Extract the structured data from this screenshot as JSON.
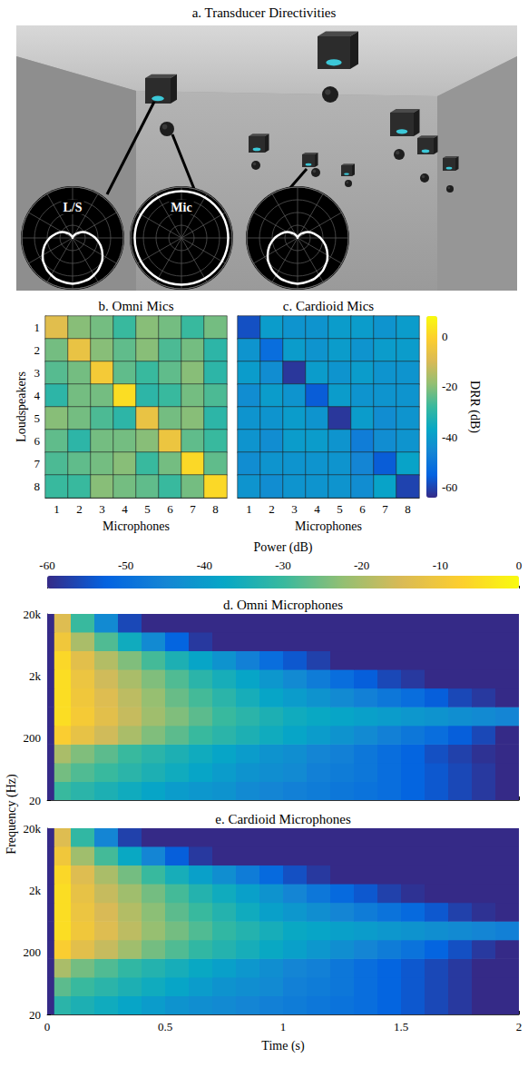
{
  "chart_data": [
    {
      "type": "polar",
      "title": "a. Transducer Directivities",
      "thetalim": [
        0,
        360
      ],
      "thetaticks": [
        0,
        30,
        60,
        90,
        120,
        150,
        180,
        210,
        240,
        270,
        300,
        330
      ],
      "rlim": [
        0,
        1
      ],
      "rticks": [
        0,
        0.25,
        0.5,
        0.75,
        1
      ],
      "tick_labels": false,
      "grid": true,
      "angles": [
        0,
        15,
        30,
        45,
        60,
        75,
        90,
        105,
        120,
        135,
        150,
        165,
        180,
        195,
        210,
        225,
        240,
        255,
        270,
        285,
        300,
        315,
        330,
        345
      ],
      "series": [
        {
          "name": "L/S",
          "color": "#ffffff",
          "values": [
            0.9,
            0.88,
            0.84,
            0.77,
            0.68,
            0.57,
            0.45,
            0.33,
            0.23,
            0.13,
            0.06,
            0.02,
            0,
            0.02,
            0.06,
            0.13,
            0.23,
            0.33,
            0.45,
            0.57,
            0.68,
            0.77,
            0.84,
            0.88
          ]
        },
        {
          "name": "Mic",
          "color": "#ffffff",
          "values": [
            0.92,
            0.92,
            0.92,
            0.92,
            0.92,
            0.92,
            0.92,
            0.92,
            0.92,
            0.92,
            0.92,
            0.92,
            0.92,
            0.92,
            0.92,
            0.92,
            0.92,
            0.92,
            0.92,
            0.92,
            0.92,
            0.92,
            0.92,
            0.92
          ]
        },
        {
          "color": "#ffffff",
          "values": [
            0.9,
            0.88,
            0.84,
            0.77,
            0.68,
            0.57,
            0.45,
            0.33,
            0.23,
            0.13,
            0.06,
            0.02,
            0,
            0.02,
            0.06,
            0.13,
            0.23,
            0.33,
            0.45,
            0.57,
            0.68,
            0.77,
            0.84,
            0.88
          ]
        }
      ]
    },
    {
      "type": "heatmap",
      "title": "b. Omni Mics",
      "x_label": "Microphones",
      "y_label": "Loudspeakers",
      "x": [
        1,
        2,
        3,
        4,
        5,
        6,
        7,
        8
      ],
      "y": [
        1,
        2,
        3,
        4,
        5,
        6,
        7,
        8
      ],
      "cells": [
        [
          -8,
          -20,
          -22,
          -28,
          -20,
          -22,
          -28,
          -22
        ],
        [
          -22,
          -6,
          -20,
          -24,
          -20,
          -26,
          -22,
          -30
        ],
        [
          -25,
          -22,
          -3,
          -24,
          -28,
          -24,
          -20,
          -30
        ],
        [
          -30,
          -22,
          -22,
          2,
          -30,
          -28,
          -22,
          -26
        ],
        [
          -20,
          -22,
          -26,
          -30,
          -6,
          -22,
          -20,
          -30
        ],
        [
          -24,
          -30,
          -22,
          -22,
          -20,
          -5,
          -24,
          -28
        ],
        [
          -26,
          -24,
          -22,
          -20,
          -28,
          -22,
          1,
          -24
        ],
        [
          -28,
          -28,
          -20,
          -22,
          -24,
          -28,
          -22,
          1
        ]
      ]
    },
    {
      "type": "heatmap",
      "title": "c. Cardioid Mics",
      "x_label": "Microphones",
      "tick_labels": "x",
      "x": [
        1,
        2,
        3,
        4,
        5,
        6,
        7,
        8
      ],
      "y": [
        1,
        2,
        3,
        4,
        5,
        6,
        7,
        8
      ],
      "cells": [
        [
          -58,
          -40,
          -42,
          -42,
          -40,
          -40,
          -42,
          -40
        ],
        [
          -42,
          -52,
          -40,
          -42,
          -40,
          -42,
          -40,
          -40
        ],
        [
          -40,
          -44,
          -62,
          -40,
          -42,
          -40,
          -42,
          -42
        ],
        [
          -44,
          -40,
          -42,
          -56,
          -40,
          -42,
          -42,
          -42
        ],
        [
          -42,
          -42,
          -40,
          -42,
          -62,
          -40,
          -44,
          -42
        ],
        [
          -42,
          -44,
          -40,
          -40,
          -42,
          -48,
          -44,
          -42
        ],
        [
          -44,
          -42,
          -42,
          -42,
          -42,
          -46,
          -56,
          -38
        ],
        [
          -42,
          -44,
          -42,
          -42,
          -42,
          -44,
          -38,
          -60
        ]
      ],
      "colorbar": {
        "label": "DRR (dB)",
        "range": [
          -64,
          8
        ],
        "ticks": [
          0,
          -20,
          -40,
          -60
        ]
      }
    },
    {
      "type": "spectrogram",
      "title": "d. Omni Microphones",
      "log": "y",
      "tick_labels": "y",
      "xlim": [
        0,
        2
      ],
      "xticks": [
        0,
        0.5,
        1,
        1.5,
        2
      ],
      "ylim": [
        20,
        20000
      ],
      "yticks": [
        20,
        200,
        {
          "value": 2000,
          "label": "2k"
        },
        {
          "value": 20000,
          "label": "20k"
        }
      ],
      "time_bins": [
        0,
        0.03,
        0.1,
        0.2,
        0.3,
        0.4,
        0.5,
        0.6,
        0.7,
        0.8,
        0.9,
        1,
        1.1,
        1.2,
        1.3,
        1.4,
        1.5,
        1.6,
        1.7,
        1.8,
        1.9,
        2
      ],
      "freq_bins": [
        20,
        40,
        80,
        160,
        320,
        640,
        1280,
        2560,
        5120,
        10240,
        20000
      ],
      "cells": [
        [
          -60,
          -30,
          -32,
          -34,
          -36,
          -38,
          -40,
          -41,
          -42,
          -44,
          -45,
          -46,
          -47,
          -48,
          -49,
          -50,
          -52,
          -54,
          -56,
          -58,
          -60
        ],
        [
          -60,
          -25,
          -28,
          -30,
          -32,
          -34,
          -36,
          -38,
          -40,
          -42,
          -43,
          -44,
          -46,
          -47,
          -48,
          -50,
          -52,
          -54,
          -56,
          -58,
          -60
        ],
        [
          -60,
          -20,
          -24,
          -27,
          -30,
          -32,
          -34,
          -36,
          -38,
          -40,
          -42,
          -43,
          -45,
          -46,
          -48,
          -50,
          -52,
          -55,
          -57,
          -59,
          -60
        ],
        [
          -60,
          -8,
          -12,
          -16,
          -20,
          -24,
          -27,
          -30,
          -32,
          -34,
          -36,
          -38,
          -40,
          -42,
          -44,
          -46,
          -48,
          -50,
          -53,
          -56,
          -60
        ],
        [
          -60,
          -5,
          -9,
          -13,
          -17,
          -21,
          -24,
          -27,
          -30,
          -32,
          -34,
          -36,
          -37,
          -38,
          -39,
          -40,
          -41,
          -42,
          -43,
          -44,
          -45
        ],
        [
          -60,
          -5,
          -10,
          -14,
          -18,
          -22,
          -26,
          -29,
          -32,
          -35,
          -38,
          -40,
          -42,
          -44,
          -46,
          -48,
          -50,
          -53,
          -56,
          -58,
          -60
        ],
        [
          -60,
          -5,
          -11,
          -16,
          -20,
          -24,
          -28,
          -32,
          -35,
          -38,
          -41,
          -44,
          -47,
          -50,
          -53,
          -56,
          -58,
          -60,
          -60,
          -60,
          -60
        ],
        [
          -60,
          -6,
          -13,
          -19,
          -24,
          -29,
          -34,
          -38,
          -42,
          -46,
          -50,
          -54,
          -57,
          -60,
          -60,
          -60,
          -60,
          -60,
          -60,
          -60,
          -60
        ],
        [
          -60,
          -10,
          -20,
          -28,
          -36,
          -44,
          -52,
          -58,
          -60,
          -60,
          -60,
          -60,
          -60,
          -60,
          -60,
          -60,
          -60,
          -60,
          -60,
          -60,
          -60
        ],
        [
          -60,
          -14,
          -30,
          -44,
          -56,
          -60,
          -60,
          -60,
          -60,
          -60,
          -60,
          -60,
          -60,
          -60,
          -60,
          -60,
          -60,
          -60,
          -60,
          -60,
          -60
        ]
      ],
      "colorbar": {
        "label": "Power (dB)",
        "range": [
          -60,
          0
        ],
        "ticks": [
          -60,
          -50,
          -40,
          -30,
          -20,
          -10,
          0
        ]
      }
    },
    {
      "type": "spectrogram",
      "title": "e. Cardioid Microphones",
      "x_label": "Time (s)",
      "y_label": "Frequency (Hz)",
      "log": "y",
      "xlim": [
        0,
        2
      ],
      "xticks": [
        0,
        0.5,
        1,
        1.5,
        2
      ],
      "ylim": [
        20,
        20000
      ],
      "yticks": [
        20,
        200,
        {
          "value": 2000,
          "label": "2k"
        },
        {
          "value": 20000,
          "label": "20k"
        }
      ],
      "time_bins": [
        0,
        0.03,
        0.1,
        0.2,
        0.3,
        0.4,
        0.5,
        0.6,
        0.7,
        0.8,
        0.9,
        1,
        1.1,
        1.2,
        1.3,
        1.4,
        1.5,
        1.6,
        1.7,
        1.8,
        1.9,
        2
      ],
      "freq_bins": [
        20,
        40,
        80,
        160,
        320,
        640,
        1280,
        2560,
        5120,
        10240,
        20000
      ],
      "cells": [
        [
          -60,
          -32,
          -34,
          -36,
          -38,
          -40,
          -42,
          -43,
          -44,
          -45,
          -46,
          -47,
          -48,
          -49,
          -50,
          -52,
          -54,
          -56,
          -58,
          -60,
          -60
        ],
        [
          -60,
          -27,
          -30,
          -32,
          -34,
          -36,
          -38,
          -40,
          -42,
          -43,
          -44,
          -46,
          -47,
          -48,
          -50,
          -52,
          -54,
          -56,
          -58,
          -60,
          -60
        ],
        [
          -60,
          -20,
          -25,
          -28,
          -31,
          -33,
          -35,
          -37,
          -39,
          -41,
          -43,
          -45,
          -46,
          -48,
          -50,
          -52,
          -54,
          -56,
          -58,
          -60,
          -60
        ],
        [
          -60,
          -8,
          -13,
          -17,
          -21,
          -25,
          -28,
          -31,
          -33,
          -35,
          -37,
          -39,
          -41,
          -43,
          -45,
          -47,
          -49,
          -52,
          -55,
          -58,
          -60
        ],
        [
          -60,
          -5,
          -10,
          -14,
          -18,
          -22,
          -25,
          -28,
          -31,
          -33,
          -35,
          -37,
          -38,
          -39,
          -40,
          -41,
          -42,
          -43,
          -44,
          -45,
          -46
        ],
        [
          -60,
          -5,
          -11,
          -15,
          -19,
          -23,
          -27,
          -30,
          -33,
          -36,
          -39,
          -41,
          -43,
          -45,
          -47,
          -49,
          -51,
          -54,
          -57,
          -59,
          -60
        ],
        [
          -60,
          -5,
          -12,
          -17,
          -21,
          -25,
          -29,
          -33,
          -36,
          -39,
          -42,
          -45,
          -48,
          -51,
          -54,
          -57,
          -59,
          -60,
          -60,
          -60,
          -60
        ],
        [
          -60,
          -6,
          -14,
          -20,
          -25,
          -30,
          -35,
          -39,
          -43,
          -47,
          -51,
          -55,
          -58,
          -60,
          -60,
          -60,
          -60,
          -60,
          -60,
          -60,
          -60
        ],
        [
          -60,
          -10,
          -21,
          -29,
          -37,
          -45,
          -53,
          -58,
          -60,
          -60,
          -60,
          -60,
          -60,
          -60,
          -60,
          -60,
          -60,
          -60,
          -60,
          -60,
          -60
        ],
        [
          -60,
          -14,
          -31,
          -45,
          -57,
          -60,
          -60,
          -60,
          -60,
          -60,
          -60,
          -60,
          -60,
          -60,
          -60,
          -60,
          -60,
          -60,
          -60,
          -60,
          -60
        ]
      ]
    }
  ]
}
